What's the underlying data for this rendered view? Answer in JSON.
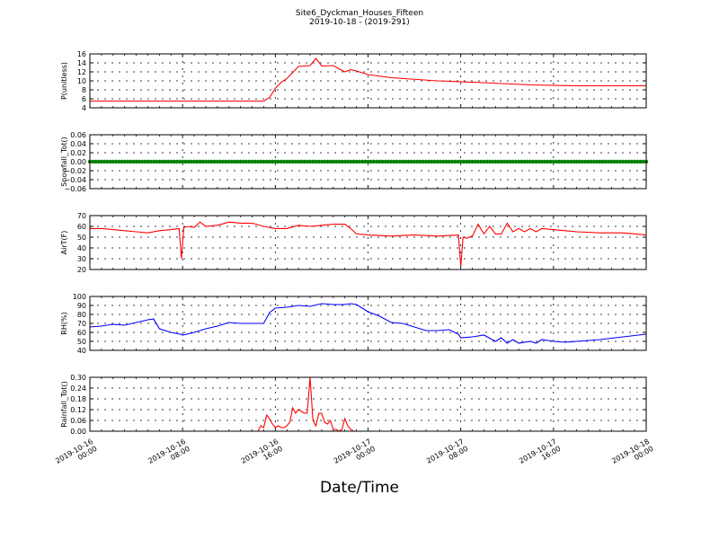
{
  "chart_data": {
    "title": "Site6_Dyckman_Houses_Fifteen",
    "subtitle": "2019-10-18 - (2019-291)",
    "xlabel": "Date/Time",
    "x_ticks": [
      [
        "2019-10-16",
        "00:00"
      ],
      [
        "2019-10-16",
        "08:00"
      ],
      [
        "2019-10-16",
        "16:00"
      ],
      [
        "2019-10-17",
        "00:00"
      ],
      [
        "2019-10-17",
        "08:00"
      ],
      [
        "2019-10-17",
        "16:00"
      ],
      [
        "2019-10-18",
        "00:00"
      ]
    ],
    "panels": [
      {
        "type": "line",
        "ylabel": "P(unitless)",
        "ylim": [
          4,
          16
        ],
        "yticks": [
          "4",
          "6",
          "8",
          "10",
          "12",
          "14",
          "16"
        ],
        "color": "#ff0000",
        "grid": true,
        "x_hours": [
          0,
          14,
          15,
          15.5,
          16,
          16.5,
          17,
          18,
          19,
          19.5,
          20,
          21,
          22,
          22.5,
          23,
          24,
          26,
          30,
          34,
          38,
          42,
          48
        ],
        "values": [
          5.5,
          5.5,
          5.5,
          6.3,
          8.3,
          9.7,
          10.5,
          13.2,
          13.4,
          15.0,
          13.3,
          13.4,
          12.0,
          12.5,
          12.2,
          11.4,
          10.7,
          10.0,
          9.6,
          9.1,
          8.9,
          8.9
        ]
      },
      {
        "type": "scatter",
        "ylabel": "Snowfall_Tot()",
        "ylim": [
          -0.06,
          0.06
        ],
        "yticks": [
          "−0.06",
          "−0.04",
          "−0.02",
          "0.00",
          "0.02",
          "0.04",
          "0.06"
        ],
        "color": "#008000",
        "grid": true,
        "constant_value": 0.0,
        "x_range_hours": [
          0,
          48
        ],
        "interval_minutes": 15
      },
      {
        "type": "line",
        "ylabel": "AirT(F)",
        "ylim": [
          20,
          70
        ],
        "yticks": [
          "20",
          "30",
          "40",
          "50",
          "60",
          "70"
        ],
        "color": "#ff0000",
        "grid": true,
        "x_hours": [
          0,
          1,
          2,
          3,
          4,
          5,
          6,
          7,
          7.7,
          7.9,
          8.1,
          8.5,
          9,
          9.5,
          10,
          11,
          12,
          13,
          14,
          15,
          16,
          17,
          18,
          19,
          20,
          21,
          22,
          22.5,
          23,
          24,
          26,
          28,
          30,
          31.8,
          32,
          32.2,
          32.5,
          33,
          33.5,
          34,
          34.5,
          35,
          35.5,
          36,
          36.5,
          37,
          37.5,
          38,
          38.5,
          39,
          40,
          41,
          42,
          44,
          46,
          48
        ],
        "values": [
          58,
          58,
          57,
          56,
          55,
          54,
          56,
          57,
          58,
          30,
          59,
          60,
          59,
          64,
          60,
          61,
          64,
          63,
          63,
          60,
          58,
          58,
          61,
          60,
          61,
          62,
          62,
          58,
          53,
          52,
          51,
          52,
          51,
          52,
          23,
          50,
          49,
          51,
          62,
          53,
          60,
          53,
          53,
          63,
          55,
          58,
          55,
          58,
          55,
          58,
          57,
          56,
          55,
          54,
          54,
          52
        ]
      },
      {
        "type": "line",
        "ylabel": "RH(%)",
        "ylim": [
          40,
          100
        ],
        "yticks": [
          "40",
          "50",
          "60",
          "70",
          "80",
          "90",
          "100"
        ],
        "color": "#0000ff",
        "grid": true,
        "x_hours": [
          0,
          1,
          2,
          3,
          4,
          5,
          5.5,
          6,
          7,
          7.8,
          8,
          9,
          10,
          11,
          12,
          13,
          14,
          15,
          15.5,
          16,
          17,
          18,
          19,
          20,
          21,
          22,
          22.5,
          23,
          24,
          25,
          26,
          27,
          28,
          29,
          30,
          31,
          31.8,
          32,
          33,
          34,
          35,
          35.5,
          36,
          36.5,
          37,
          38,
          38.5,
          39,
          40,
          41,
          42,
          44,
          46,
          48
        ],
        "values": [
          66,
          67,
          69,
          68,
          71,
          74,
          75,
          64,
          60,
          58,
          57,
          60,
          64,
          67,
          71,
          70,
          70,
          70,
          82,
          87,
          88,
          90,
          89,
          92,
          91,
          91,
          92,
          91,
          83,
          78,
          71,
          70,
          66,
          62,
          62,
          63,
          58,
          54,
          55,
          57,
          50,
          54,
          48,
          52,
          48,
          50,
          48,
          52,
          50,
          49,
          50,
          52,
          55,
          58
        ]
      },
      {
        "type": "line",
        "ylabel": "Rainfall_Tot()",
        "ylim": [
          0,
          0.3
        ],
        "yticks": [
          "0.00",
          "0.06",
          "0.12",
          "0.18",
          "0.24",
          "0.30"
        ],
        "color": "#ff0000",
        "grid": true,
        "x_hours": [
          0,
          14.5,
          14.75,
          15,
          15.25,
          15.5,
          15.75,
          16,
          16.25,
          16.5,
          16.75,
          17,
          17.25,
          17.5,
          17.75,
          18,
          18.25,
          18.5,
          18.75,
          19,
          19.25,
          19.5,
          19.75,
          20,
          20.25,
          20.5,
          20.75,
          21,
          21.25,
          21.5,
          21.75,
          22,
          22.25,
          22.5,
          22.75,
          23,
          23.25,
          48
        ],
        "values": [
          0,
          0,
          0.03,
          0.02,
          0.09,
          0.07,
          0.04,
          0.02,
          0.03,
          0.02,
          0.02,
          0.03,
          0.05,
          0.13,
          0.1,
          0.12,
          0.11,
          0.1,
          0.1,
          0.3,
          0.06,
          0.03,
          0.1,
          0.1,
          0.05,
          0.04,
          0.06,
          0.01,
          0.01,
          0.0,
          0.01,
          0.07,
          0.03,
          0.01,
          0.0,
          0.0,
          0.0,
          0
        ]
      }
    ]
  }
}
